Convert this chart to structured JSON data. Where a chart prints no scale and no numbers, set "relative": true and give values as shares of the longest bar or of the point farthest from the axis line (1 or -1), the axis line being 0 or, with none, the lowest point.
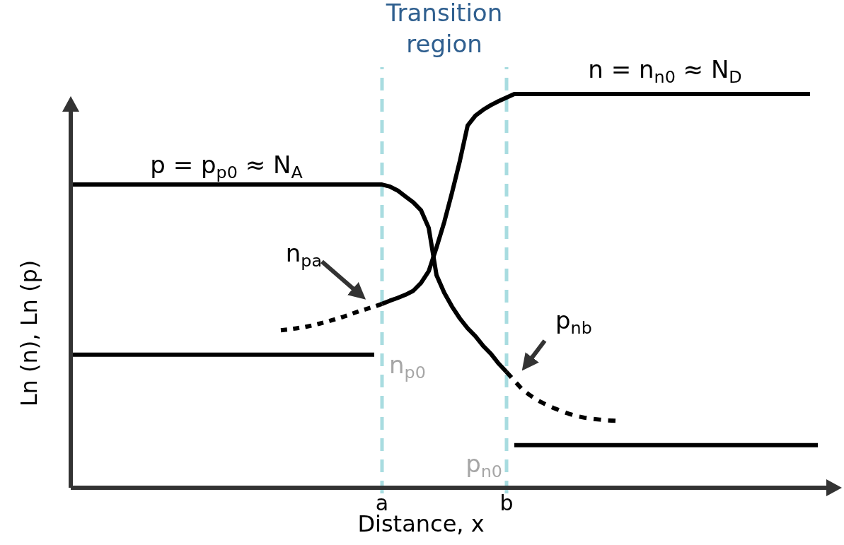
{
  "chart_data": {
    "type": "line",
    "relative": true,
    "xlabel": "Distance, x",
    "ylabel": "Ln (n), Ln (p)",
    "marker": "none",
    "categories": [
      null,
      null,
      null,
      null,
      null,
      null,
      null,
      null,
      null,
      null,
      null,
      null,
      null,
      null,
      null,
      null,
      null,
      null,
      null,
      null,
      null,
      null,
      null,
      null,
      null,
      null,
      null,
      null,
      null,
      null,
      null,
      null,
      null,
      null,
      null,
      null,
      null,
      null,
      null,
      null,
      "a",
      null,
      null,
      null,
      null,
      null,
      null,
      null,
      null,
      null,
      null,
      null,
      null,
      null,
      null,
      null,
      "b",
      null,
      null,
      null,
      null,
      null,
      null,
      null,
      null,
      null,
      null,
      null,
      null,
      null,
      null,
      null,
      null,
      null,
      null,
      null,
      null,
      null,
      null,
      null,
      null,
      null,
      null,
      null,
      null,
      null,
      null,
      null,
      null,
      null,
      null,
      null,
      null,
      null,
      null,
      null,
      null,
      null,
      null
    ],
    "series": [
      {
        "color": "#000000",
        "line_style": "solid",
        "values": [
          0.77,
          0.77,
          0.77,
          0.77,
          0.77,
          0.77,
          0.77,
          0.77,
          0.77,
          0.77,
          0.77,
          0.77,
          0.77,
          0.77,
          0.77,
          0.77,
          0.77,
          0.77,
          0.77,
          0.77,
          0.77,
          0.77,
          0.77,
          0.77,
          0.77,
          0.77,
          0.77,
          0.77,
          0.77,
          0.77,
          0.77,
          0.77,
          0.77,
          0.77,
          0.77,
          0.77,
          0.77,
          0.77,
          0.77,
          0.77,
          0.77,
          0.765,
          0.755,
          0.74,
          0.725,
          0.705,
          0.66,
          0.54,
          0.495,
          0.46,
          0.43,
          0.405,
          0.385,
          0.36,
          0.34,
          0.315,
          0.294,
          null,
          null,
          null,
          null,
          null,
          null,
          null,
          null,
          null,
          null,
          null,
          null,
          null,
          null,
          null,
          null,
          null,
          null,
          null,
          null,
          null,
          null,
          null,
          null,
          null,
          null,
          null,
          null,
          null,
          null,
          null,
          null,
          null,
          null,
          null,
          null,
          null,
          null,
          null,
          null,
          null,
          null
        ]
      },
      {
        "color": "#000000",
        "line_style": "dashed",
        "values": [
          null,
          null,
          null,
          null,
          null,
          null,
          null,
          null,
          null,
          null,
          null,
          null,
          null,
          null,
          null,
          null,
          null,
          null,
          null,
          null,
          null,
          null,
          null,
          null,
          null,
          null,
          null,
          null,
          null,
          null,
          null,
          null,
          null,
          null,
          null,
          null,
          null,
          null,
          null,
          null,
          null,
          null,
          null,
          null,
          null,
          null,
          null,
          null,
          null,
          null,
          null,
          null,
          null,
          null,
          null,
          null,
          0.294,
          0.272,
          0.25,
          0.235,
          0.222,
          0.212,
          0.203,
          0.195,
          0.188,
          0.182,
          0.178,
          0.175,
          0.173,
          0.171,
          0.17,
          null,
          null,
          null,
          null,
          null,
          null,
          null,
          null,
          null,
          null,
          null,
          null,
          null,
          null,
          null,
          null,
          null,
          null,
          null,
          null,
          null,
          null,
          null,
          null,
          null,
          null,
          null,
          null
        ]
      },
      {
        "color": "#000000",
        "line_style": "solid",
        "values": [
          null,
          null,
          null,
          null,
          null,
          null,
          null,
          null,
          null,
          null,
          null,
          null,
          null,
          null,
          null,
          null,
          null,
          null,
          null,
          null,
          null,
          null,
          null,
          null,
          null,
          null,
          null,
          null,
          null,
          null,
          null,
          null,
          null,
          null,
          null,
          null,
          null,
          null,
          null,
          null,
          0.467,
          0.475,
          0.482,
          0.49,
          0.5,
          0.52,
          0.55,
          0.61,
          0.675,
          0.75,
          0.83,
          0.92,
          0.945,
          0.96,
          0.972,
          0.982,
          0.991,
          1,
          1,
          1,
          1,
          1,
          1,
          1,
          1,
          1,
          1,
          1,
          1,
          1,
          1,
          1,
          1,
          1,
          1,
          1,
          1,
          1,
          1,
          1,
          1,
          1,
          1,
          1,
          1,
          1,
          1,
          1,
          1,
          1,
          1,
          1,
          1,
          1,
          1,
          1,
          null,
          null,
          null
        ]
      },
      {
        "color": "#000000",
        "line_style": "dashed",
        "values": [
          null,
          null,
          null,
          null,
          null,
          null,
          null,
          null,
          null,
          null,
          null,
          null,
          null,
          null,
          null,
          null,
          null,
          null,
          null,
          null,
          null,
          null,
          null,
          null,
          null,
          null,
          null,
          0.4,
          0.402,
          0.405,
          0.408,
          0.412,
          0.417,
          0.422,
          0.428,
          0.434,
          0.441,
          0.448,
          0.454,
          0.46,
          0.467,
          null,
          null,
          null,
          null,
          null,
          null,
          null,
          null,
          null,
          null,
          null,
          null,
          null,
          null,
          null,
          null,
          null,
          null,
          null,
          null,
          null,
          null,
          null,
          null,
          null,
          null,
          null,
          null,
          null,
          null,
          null,
          null,
          null,
          null,
          null,
          null,
          null,
          null,
          null,
          null,
          null,
          null,
          null,
          null,
          null,
          null,
          null,
          null,
          null,
          null,
          null,
          null,
          null,
          null,
          null,
          null,
          null,
          null
        ]
      },
      {
        "color": "#000000",
        "line_style": "solid",
        "values": [
          0.338,
          0.338,
          0.338,
          0.338,
          0.338,
          0.338,
          0.338,
          0.338,
          0.338,
          0.338,
          0.338,
          0.338,
          0.338,
          0.338,
          0.338,
          0.338,
          0.338,
          0.338,
          0.338,
          0.338,
          0.338,
          0.338,
          0.338,
          0.338,
          0.338,
          0.338,
          0.338,
          0.338,
          0.338,
          0.338,
          0.338,
          0.338,
          0.338,
          0.338,
          0.338,
          0.338,
          0.338,
          0.338,
          0.338,
          0.338,
          null,
          null,
          null,
          null,
          null,
          null,
          null,
          null,
          null,
          null,
          null,
          null,
          null,
          null,
          null,
          null,
          null,
          null,
          null,
          null,
          null,
          null,
          null,
          null,
          null,
          null,
          null,
          null,
          null,
          null,
          null,
          null,
          null,
          null,
          null,
          null,
          null,
          null,
          null,
          null,
          null,
          null,
          null,
          null,
          null,
          null,
          null,
          null,
          null,
          null,
          null,
          null,
          null,
          null,
          null,
          null,
          null,
          null,
          null
        ]
      },
      {
        "color": "#000000",
        "line_style": "solid",
        "values": [
          null,
          null,
          null,
          null,
          null,
          null,
          null,
          null,
          null,
          null,
          null,
          null,
          null,
          null,
          null,
          null,
          null,
          null,
          null,
          null,
          null,
          null,
          null,
          null,
          null,
          null,
          null,
          null,
          null,
          null,
          null,
          null,
          null,
          null,
          null,
          null,
          null,
          null,
          null,
          null,
          null,
          null,
          null,
          null,
          null,
          null,
          null,
          null,
          null,
          null,
          null,
          null,
          null,
          null,
          null,
          null,
          null,
          0.108,
          0.108,
          0.108,
          0.108,
          0.108,
          0.108,
          0.108,
          0.108,
          0.108,
          0.108,
          0.108,
          0.108,
          0.108,
          0.108,
          0.108,
          0.108,
          0.108,
          0.108,
          0.108,
          0.108,
          0.108,
          0.108,
          0.108,
          0.108,
          0.108,
          0.108,
          0.108,
          0.108,
          0.108,
          0.108,
          0.108,
          0.108,
          0.108,
          0.108,
          0.108,
          0.108,
          0.108,
          0.108,
          0.108,
          0.108,
          null,
          null
        ]
      }
    ],
    "ref_lines": [
      {
        "axis": "x",
        "value": "a",
        "color": "#a8dce0",
        "line_style": "dashed"
      },
      {
        "axis": "x",
        "value": "b",
        "color": "#a8dce0",
        "line_style": "dashed"
      }
    ],
    "annotations": [
      "p = p$_{p0}$ ≈ N$_{A}$",
      "n = n$_{n0}$ ≈ N$_{D}$",
      "n$_{pa}$",
      "p$_{nb}$",
      "n$_{p0}$",
      "p$_{n0}$",
      "Transition region"
    ]
  }
}
